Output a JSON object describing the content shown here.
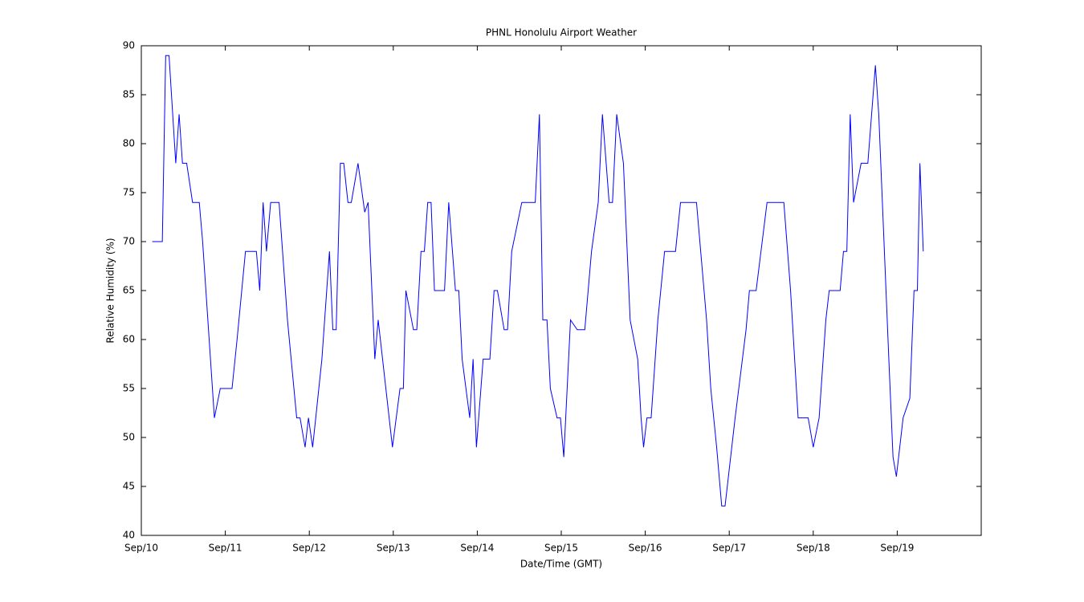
{
  "chart_data": {
    "type": "line",
    "title": "PHNL Honolulu Airport Weather",
    "x_label": "Date/Time (GMT)",
    "y_label": "Relative Humidity (%)",
    "x": [
      0.13,
      0.25,
      0.29,
      0.33,
      0.41,
      0.45,
      0.49,
      0.54,
      0.61,
      0.69,
      0.73,
      0.87,
      0.94,
      1.08,
      1.14,
      1.24,
      1.37,
      1.41,
      1.45,
      1.49,
      1.54,
      1.64,
      1.74,
      1.85,
      1.89,
      1.95,
      1.99,
      2.04,
      2.15,
      2.24,
      2.28,
      2.32,
      2.37,
      2.41,
      2.46,
      2.5,
      2.58,
      2.66,
      2.7,
      2.78,
      2.82,
      2.99,
      3.08,
      3.12,
      3.15,
      3.24,
      3.28,
      3.33,
      3.37,
      3.41,
      3.45,
      3.49,
      3.61,
      3.66,
      3.74,
      3.78,
      3.82,
      3.91,
      3.95,
      3.99,
      4.07,
      4.15,
      4.2,
      4.24,
      4.32,
      4.36,
      4.41,
      4.53,
      4.69,
      4.74,
      4.78,
      4.83,
      4.87,
      4.95,
      4.99,
      5.03,
      5.11,
      5.19,
      5.28,
      5.36,
      5.44,
      5.49,
      5.57,
      5.61,
      5.66,
      5.74,
      5.82,
      5.91,
      5.95,
      5.98,
      6.02,
      6.07,
      6.15,
      6.23,
      6.36,
      6.42,
      6.61,
      6.73,
      6.78,
      6.85,
      6.91,
      6.95,
      7.07,
      7.2,
      7.24,
      7.32,
      7.45,
      7.65,
      7.73,
      7.82,
      7.94,
      8.0,
      8.07,
      8.15,
      8.19,
      8.32,
      8.36,
      8.4,
      8.44,
      8.48,
      8.57,
      8.65,
      8.74,
      8.78,
      8.9,
      8.95,
      8.99,
      9.07,
      9.15,
      9.2,
      9.24,
      9.27,
      9.31
    ],
    "series": [
      {
        "name": "Relative Humidity",
        "color": "#0000ff",
        "values": [
          70,
          70,
          89,
          89,
          78,
          83,
          78,
          78,
          74,
          74,
          70,
          52,
          55,
          55,
          60,
          69,
          69,
          65,
          74,
          69,
          74,
          74,
          62,
          52,
          52,
          49,
          52,
          49,
          58,
          69,
          61,
          61,
          78,
          78,
          74,
          74,
          78,
          73,
          74,
          58,
          62,
          49,
          55,
          55,
          65,
          61,
          61,
          69,
          69,
          74,
          74,
          65,
          65,
          74,
          65,
          65,
          58,
          52,
          58,
          49,
          58,
          58,
          65,
          65,
          61,
          61,
          69,
          74,
          74,
          83,
          62,
          62,
          55,
          52,
          52,
          48,
          62,
          61,
          61,
          69,
          74,
          83,
          74,
          74,
          83,
          78,
          62,
          58,
          52,
          49,
          52,
          52,
          62,
          69,
          69,
          74,
          74,
          62,
          55,
          49,
          43,
          43,
          52,
          61,
          65,
          65,
          74,
          74,
          65,
          52,
          52,
          49,
          52,
          62,
          65,
          65,
          69,
          69,
          83,
          74,
          78,
          78,
          88,
          83,
          58,
          48,
          46,
          52,
          54,
          65,
          65,
          78,
          69
        ]
      }
    ],
    "xlim": [
      0,
      10
    ],
    "xticks": [
      {
        "value": 0,
        "label": "Sep/10"
      },
      {
        "value": 1,
        "label": "Sep/11"
      },
      {
        "value": 2,
        "label": "Sep/12"
      },
      {
        "value": 3,
        "label": "Sep/13"
      },
      {
        "value": 4,
        "label": "Sep/14"
      },
      {
        "value": 5,
        "label": "Sep/15"
      },
      {
        "value": 6,
        "label": "Sep/16"
      },
      {
        "value": 7,
        "label": "Sep/17"
      },
      {
        "value": 8,
        "label": "Sep/18"
      },
      {
        "value": 9,
        "label": "Sep/19"
      }
    ],
    "ylim": [
      40,
      90
    ],
    "yticks": [
      40,
      45,
      50,
      55,
      60,
      65,
      70,
      75,
      80,
      85,
      90
    ],
    "grid": false
  }
}
